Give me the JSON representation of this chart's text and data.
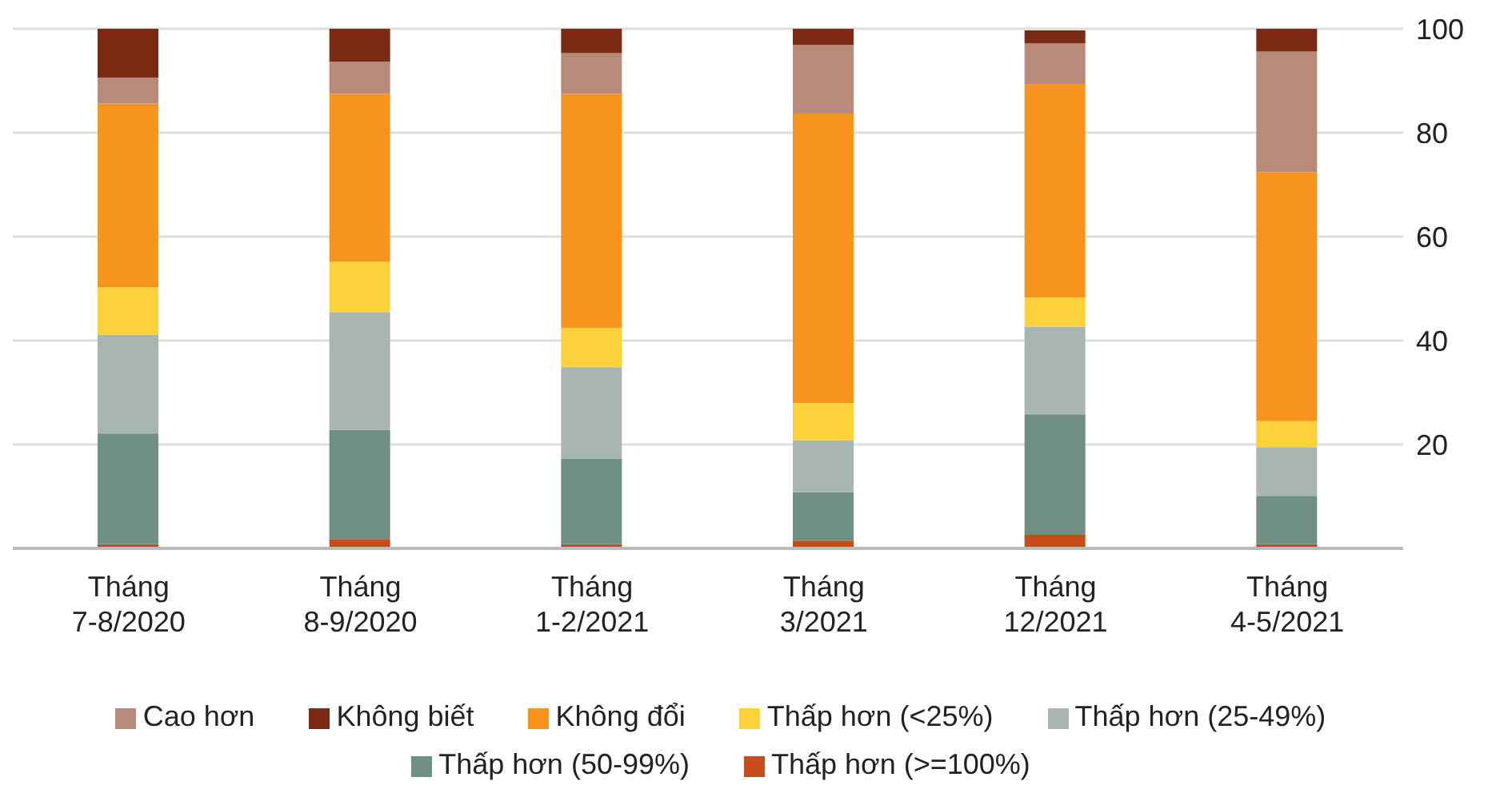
{
  "chart_data": {
    "type": "bar",
    "stacked": true,
    "categories": [
      "Tháng 7-8/2020",
      "Tháng 8-9/2020",
      "Tháng 1-2/2021",
      "Tháng 3/2021",
      "Tháng 12/2021",
      "Tháng 4-5/2021"
    ],
    "series": [
      {
        "name": "Thấp hơn (>=100%)",
        "color": "#c84b1a",
        "values": [
          0.8,
          1.8,
          0.8,
          1.5,
          2.6,
          0.8
        ]
      },
      {
        "name": "Thấp hơn (50-99%)",
        "color": "#6e8f82",
        "values": [
          21.3,
          21,
          16.5,
          9.3,
          23.2,
          9.3
        ]
      },
      {
        "name": "Thấp hơn (25-49%)",
        "color": "#a9b5b0",
        "values": [
          19,
          22.7,
          17.6,
          10,
          16.9,
          9.4
        ]
      },
      {
        "name": "Thấp hơn  (<25%)",
        "color": "#fdd13a",
        "values": [
          9.2,
          9.7,
          7.5,
          7.2,
          5.6,
          5
        ]
      },
      {
        "name": "Không đổi",
        "color": "#f6941d",
        "values": [
          35.3,
          32.3,
          45.1,
          55.7,
          41.1,
          47.9
        ]
      },
      {
        "name": "Cao hơn",
        "color": "#b78a7a",
        "values": [
          5,
          6.2,
          7.8,
          13.2,
          7.8,
          23.2
        ]
      },
      {
        "name": "Không biết",
        "color": "#7b2a13",
        "values": [
          9.4,
          6.3,
          4.7,
          3.1,
          2.5,
          4.4
        ]
      }
    ],
    "ylim": [
      0,
      100
    ],
    "yticks": [
      {
        "value": 0,
        "label": null
      },
      20,
      40,
      60,
      80,
      100
    ],
    "grid": "y",
    "legend": "bottom"
  }
}
